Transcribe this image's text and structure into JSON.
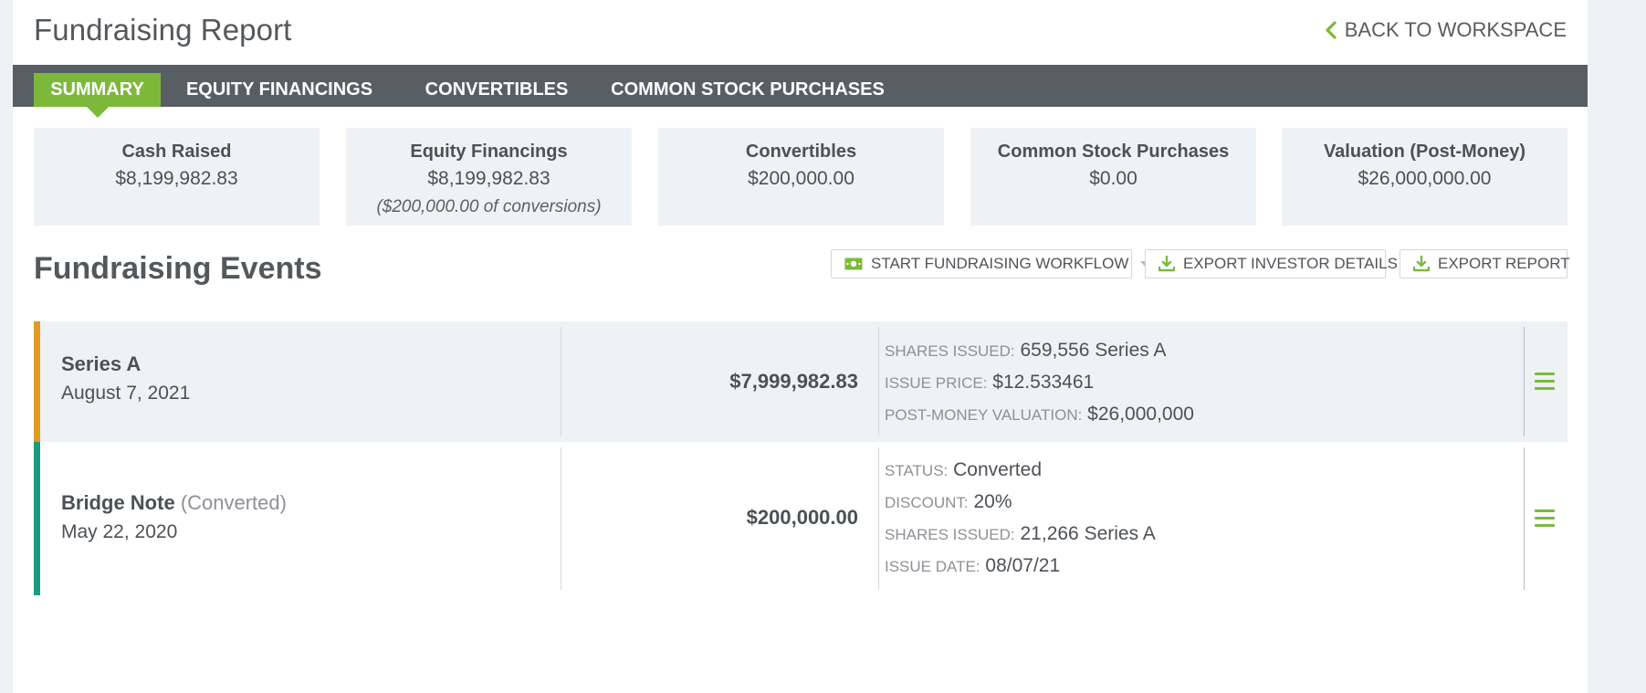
{
  "header": {
    "title": "Fundraising Report",
    "back_label": "BACK TO WORKSPACE"
  },
  "tabs": [
    {
      "label": "SUMMARY",
      "active": true
    },
    {
      "label": "EQUITY FINANCINGS",
      "active": false
    },
    {
      "label": "CONVERTIBLES",
      "active": false
    },
    {
      "label": "COMMON STOCK PURCHASES",
      "active": false
    }
  ],
  "stats": [
    {
      "label": "Cash Raised",
      "value": "$8,199,982.83"
    },
    {
      "label": "Equity Financings",
      "value": "$8,199,982.83",
      "note": "($200,000.00 of conversions)"
    },
    {
      "label": "Convertibles",
      "value": "$200,000.00"
    },
    {
      "label": "Common Stock Purchases",
      "value": "$0.00"
    },
    {
      "label": "Valuation (Post-Money)",
      "value": "$26,000,000.00"
    }
  ],
  "events_section": {
    "title": "Fundraising Events",
    "buttons": {
      "start_workflow": "START FUNDRAISING WORKFLOW",
      "export_investor": "EXPORT INVESTOR DETAILS",
      "export_report": "EXPORT REPORT"
    }
  },
  "events": [
    {
      "name": "Series A",
      "sub": "",
      "date": "August 7, 2021",
      "amount": "$7,999,982.83",
      "details": [
        {
          "key": "SHARES ISSUED:",
          "value": "659,556 Series A"
        },
        {
          "key": "ISSUE PRICE:",
          "value": "$12.533461"
        },
        {
          "key": "POST-MONEY VALUATION:",
          "value": "$26,000,000"
        }
      ]
    },
    {
      "name": "Bridge Note",
      "sub": "(Converted)",
      "date": "May 22, 2020",
      "amount": "$200,000.00",
      "details": [
        {
          "key": "STATUS:",
          "value": "Converted"
        },
        {
          "key": "DISCOUNT:",
          "value": "20%"
        },
        {
          "key": "SHARES ISSUED:",
          "value": "21,266 Series A"
        },
        {
          "key": "ISSUE DATE:",
          "value": "08/07/21"
        }
      ]
    }
  ],
  "colors": {
    "accent": "#7cb93a",
    "navbar": "#585f64",
    "series_a_bar": "#e29a1f",
    "bridge_note_bar": "#1a9b7f"
  },
  "icons": {
    "back": "chevron-left-icon",
    "workflow": "cash-icon",
    "export": "download-icon",
    "row_menu": "hamburger-menu-icon"
  }
}
